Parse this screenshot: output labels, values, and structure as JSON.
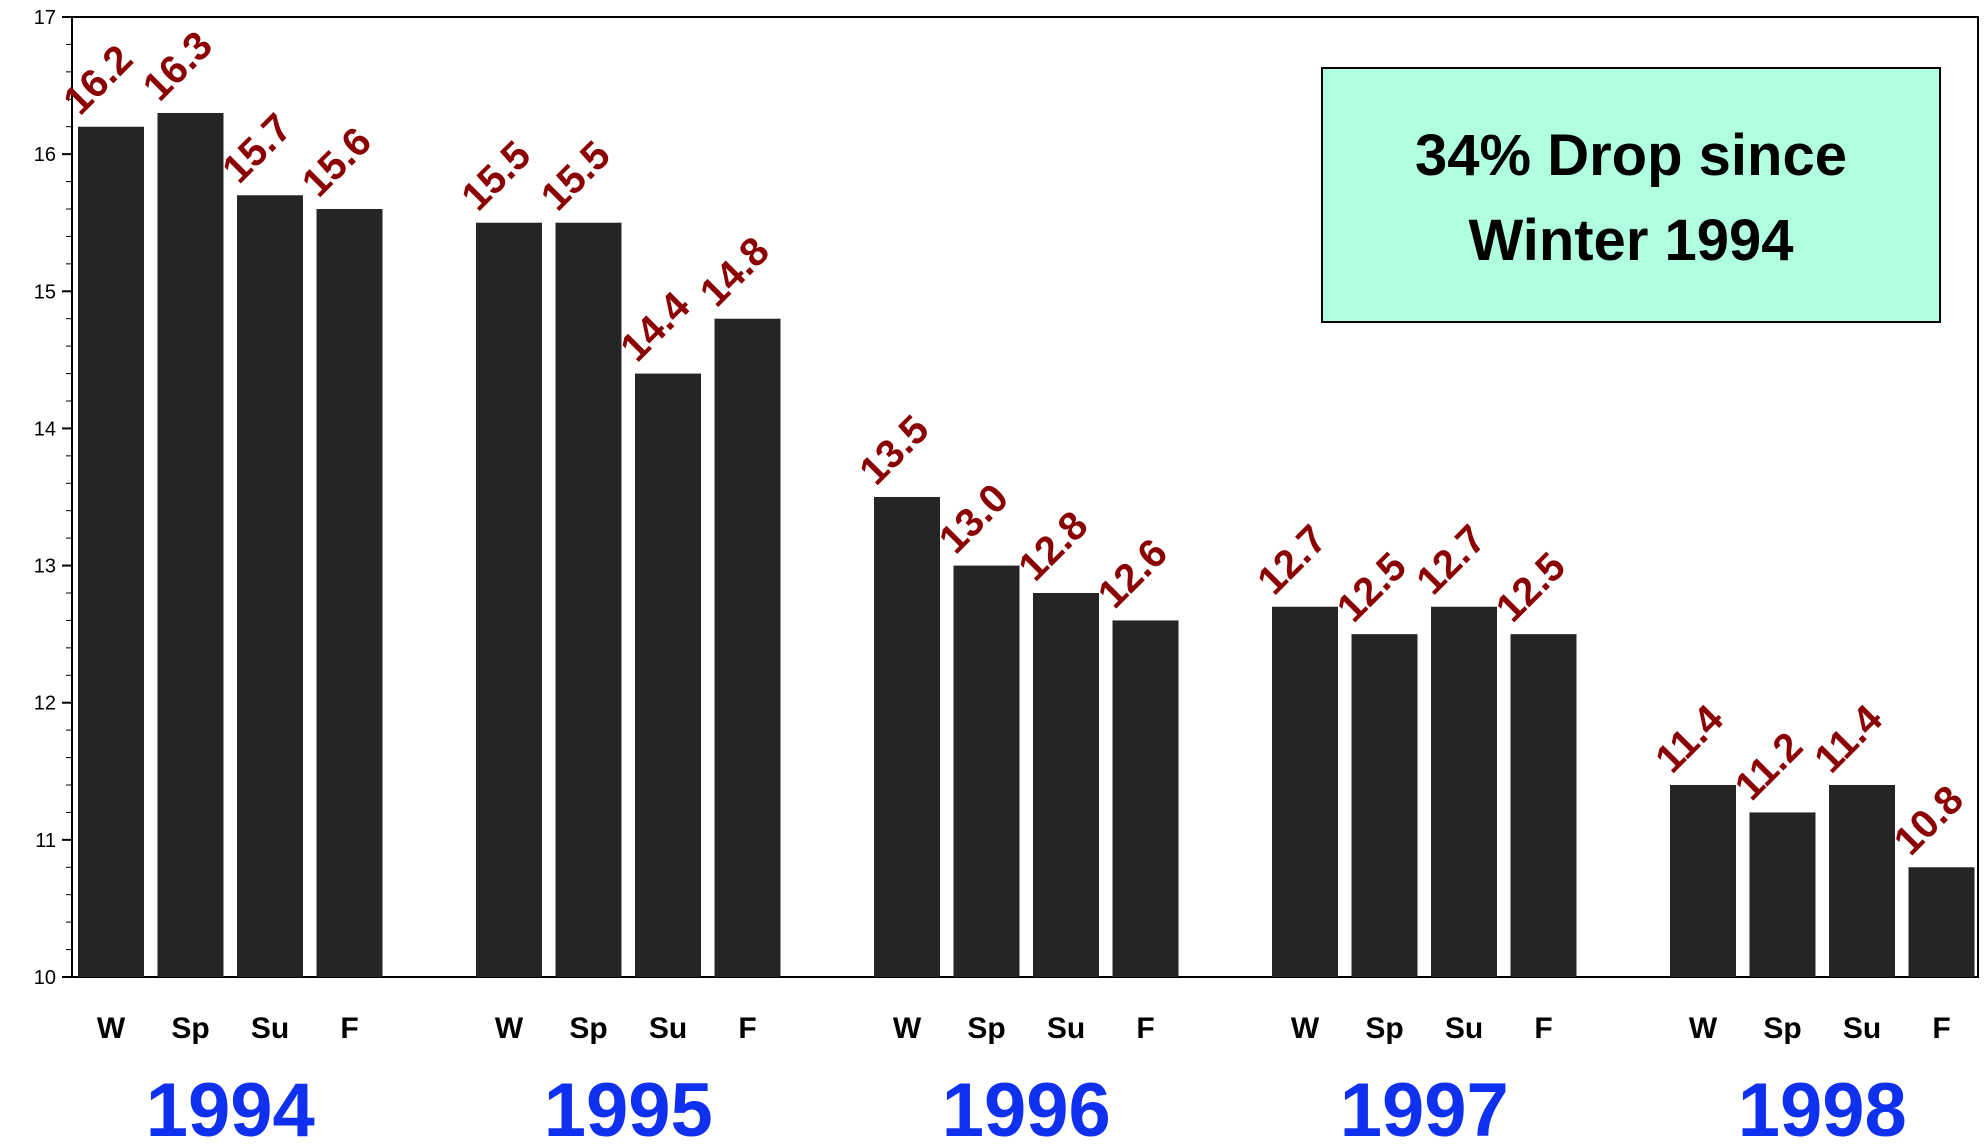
{
  "chart_data": {
    "type": "bar",
    "title": "",
    "xlabel": "",
    "ylabel": "",
    "ylim": [
      10,
      17
    ],
    "yticks": [
      "10",
      "11",
      "12",
      "13",
      "14",
      "15",
      "16",
      "17"
    ],
    "grid": false,
    "legend": "none",
    "groups": [
      {
        "year": "1994",
        "seasons": [
          "W",
          "Sp",
          "Su",
          "F"
        ],
        "values": [
          16.2,
          16.3,
          15.7,
          15.6
        ],
        "labels": [
          "16.2",
          "16.3",
          "15.7",
          "15.6"
        ]
      },
      {
        "year": "1995",
        "seasons": [
          "W",
          "Sp",
          "Su",
          "F"
        ],
        "values": [
          15.5,
          15.5,
          14.4,
          14.8
        ],
        "labels": [
          "15.5",
          "15.5",
          "14.4",
          "14.8"
        ]
      },
      {
        "year": "1996",
        "seasons": [
          "W",
          "Sp",
          "Su",
          "F"
        ],
        "values": [
          13.5,
          13.0,
          12.8,
          12.6
        ],
        "labels": [
          "13.5",
          "13.0",
          "12.8",
          "12.6"
        ]
      },
      {
        "year": "1997",
        "seasons": [
          "W",
          "Sp",
          "Su",
          "F"
        ],
        "values": [
          12.7,
          12.5,
          12.7,
          12.5
        ],
        "labels": [
          "12.7",
          "12.5",
          "12.7",
          "12.5"
        ]
      },
      {
        "year": "1998",
        "seasons": [
          "W",
          "Sp",
          "Su",
          "F"
        ],
        "values": [
          11.4,
          11.2,
          11.4,
          10.8
        ],
        "labels": [
          "11.4",
          "11.2",
          "11.4",
          "10.8"
        ]
      }
    ],
    "annotation": {
      "lines": [
        "34% Drop since",
        "Winter 1994"
      ]
    }
  },
  "colors": {
    "bar": "#252525",
    "data_label": "#8B0000",
    "year_label": "#1030F0",
    "callout_fill": "#B0FFE0",
    "axis": "#000000"
  }
}
